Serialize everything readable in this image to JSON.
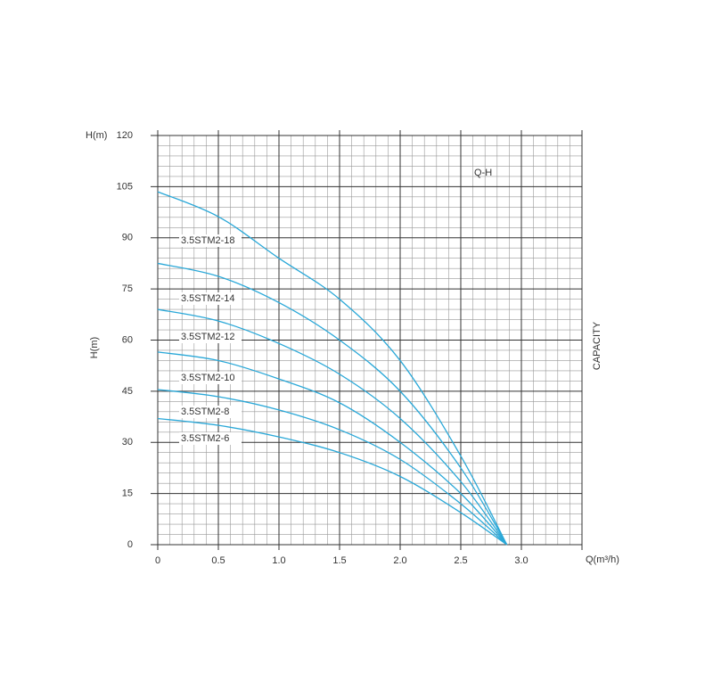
{
  "chart_data": {
    "type": "line",
    "y_axis_title": "H(m)",
    "y_axis_label": "H(m)",
    "x_axis_label": "Q(m³/h)",
    "right_label": "CAPACITY",
    "annotation": "Q-H",
    "x": [
      0,
      0.5,
      1,
      1.5,
      2,
      2.5,
      2.88
    ],
    "series": [
      {
        "name": "3.5STM2-18",
        "color": "#2aa8d8",
        "values": [
          103.5,
          96.2,
          84,
          72,
          54,
          26,
          0
        ]
      },
      {
        "name": "3.5STM2-14",
        "color": "#2aa8d8",
        "values": [
          82.5,
          78.7,
          71,
          60,
          45,
          22.5,
          0
        ]
      },
      {
        "name": "3.5STM2-12",
        "color": "#2aa8d8",
        "values": [
          69,
          65.6,
          59,
          50,
          37,
          18.5,
          0
        ]
      },
      {
        "name": "3.5STM2-10",
        "color": "#2aa8d8",
        "values": [
          56.5,
          54,
          48.6,
          41.6,
          30,
          15,
          0
        ]
      },
      {
        "name": "3.5STM2-8",
        "color": "#2aa8d8",
        "values": [
          45.5,
          43.4,
          39.5,
          33.7,
          25,
          12,
          0
        ]
      },
      {
        "name": "3.5STM2-6",
        "color": "#2aa8d8",
        "values": [
          37,
          35,
          31.6,
          27,
          20,
          9.4,
          0
        ]
      }
    ],
    "xlim": [
      0,
      3.5
    ],
    "xticks": [
      0,
      0.5,
      {
        "value": 1,
        "label": "1.0"
      },
      1.5,
      {
        "value": 2,
        "label": "2.0"
      },
      2.5,
      {
        "value": 3,
        "label": "3.0"
      },
      {
        "value": 3.5,
        "label": ""
      }
    ],
    "ylim": [
      0,
      120
    ],
    "yticks": [
      0,
      15,
      30,
      45,
      60,
      75,
      90,
      105,
      120
    ],
    "grid": true,
    "minor_divisions": 5
  }
}
